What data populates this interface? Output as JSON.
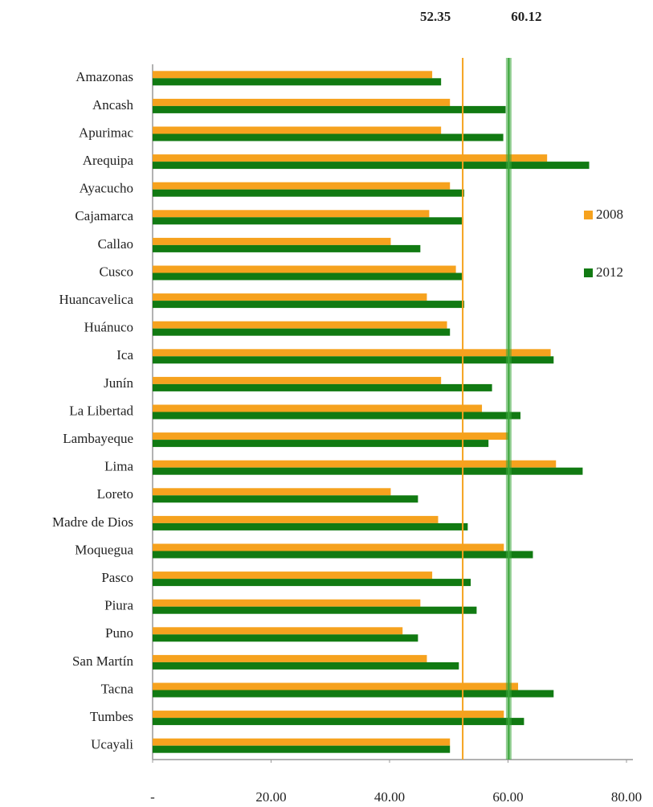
{
  "chart_data": {
    "type": "bar",
    "orientation": "horizontal",
    "categories": [
      "Amazonas",
      "Ancash",
      "Apurimac",
      "Arequipa",
      "Ayacucho",
      "Cajamarca",
      "Callao",
      "Cusco",
      "Huancavelica",
      "Huánuco",
      "Ica",
      "Junín",
      "La Libertad",
      "Lambayeque",
      "Lima",
      "Loreto",
      "Madre de Dios",
      "Moquegua",
      "Pasco",
      "Piura",
      "Puno",
      "San Martín",
      "Tacna",
      "Tumbes",
      "Ucayali"
    ],
    "series": [
      {
        "name": "2008",
        "color": "#f6a21e",
        "values": [
          47.2,
          50.2,
          48.7,
          66.6,
          50.2,
          46.7,
          40.2,
          51.2,
          46.3,
          49.7,
          67.2,
          48.7,
          55.6,
          60.1,
          68.1,
          40.2,
          48.2,
          59.3,
          47.2,
          45.2,
          42.2,
          46.3,
          61.7,
          59.3,
          50.2
        ]
      },
      {
        "name": "2012",
        "color": "#117a12",
        "values": [
          48.7,
          59.6,
          59.2,
          73.7,
          52.6,
          52.2,
          45.2,
          52.2,
          52.6,
          50.2,
          67.7,
          57.3,
          62.1,
          56.7,
          72.6,
          44.8,
          53.2,
          64.2,
          53.7,
          54.7,
          44.8,
          51.7,
          67.7,
          62.7,
          50.2
        ]
      }
    ],
    "reference_lines": [
      {
        "value": 52.35,
        "color": "#f6a21e"
      },
      {
        "value": 60.12,
        "color": "#3aa63a"
      }
    ],
    "xlim": [
      0,
      80
    ],
    "xticks": [
      {
        "value": 0,
        "label": "-"
      },
      {
        "value": 20,
        "label": "20.00"
      },
      {
        "value": 40,
        "label": "40.00"
      },
      {
        "value": 60,
        "label": "60.00"
      },
      {
        "value": 80,
        "label": "80.00"
      }
    ],
    "legend": "right"
  }
}
